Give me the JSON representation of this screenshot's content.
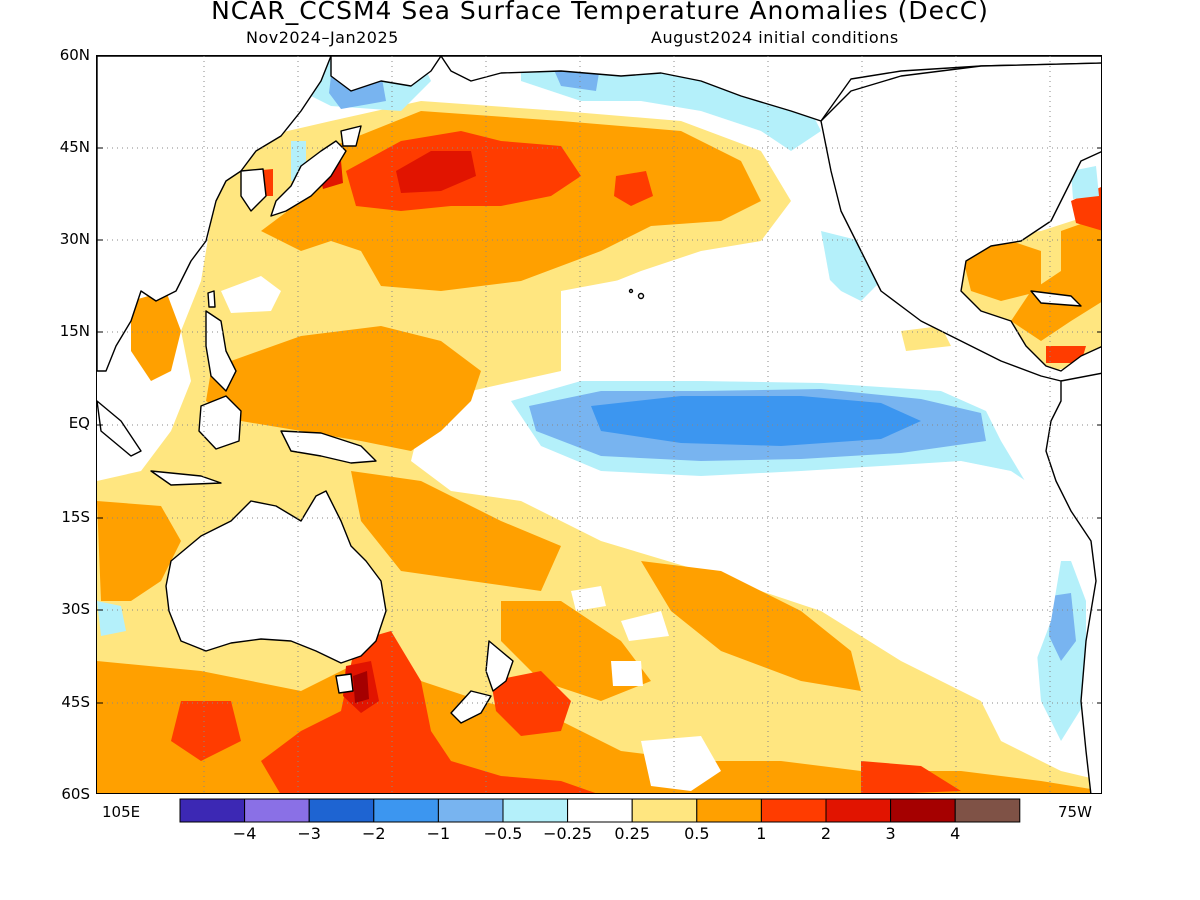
{
  "title": "NCAR_CCSM4 Sea Surface Temperature Anomalies (DecC)",
  "subtitle_left": "Nov2024–Jan2025",
  "subtitle_right": "August2024 initial conditions",
  "lat_labels": [
    "60N",
    "45N",
    "30N",
    "15N",
    "EQ",
    "15S",
    "30S",
    "45S",
    "60S"
  ],
  "lon_labels": {
    "left": "105E",
    "right": "75W"
  },
  "colorbar": {
    "labels": [
      "−4",
      "−3",
      "−2",
      "−1",
      "−0.5",
      "−0.25",
      "0.25",
      "0.5",
      "1",
      "2",
      "3",
      "4"
    ],
    "colors": [
      "#3c28b4",
      "#8a70e6",
      "#1e64d2",
      "#3c96f0",
      "#78b4f0",
      "#b4f0fa",
      "#ffffff",
      "#ffe680",
      "#ffa000",
      "#ff3c00",
      "#e11400",
      "#a50000",
      "#7f5246"
    ]
  },
  "map_colors": {
    "land": "#ffffff",
    "ocean_neutral": "#ffffff",
    "coast": "#000000"
  }
}
